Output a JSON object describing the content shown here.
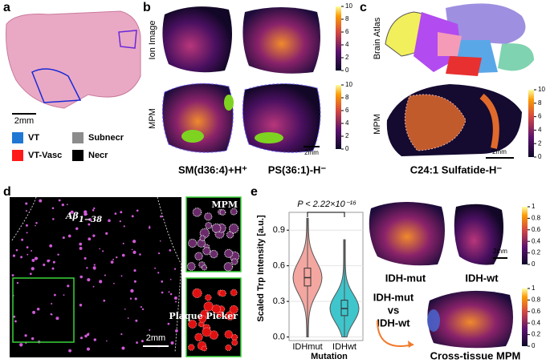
{
  "panels": {
    "a": {
      "label": "a",
      "scale_bar": "2mm",
      "legend": [
        {
          "name": "VT",
          "color": "#1f77d4"
        },
        {
          "name": "Subnecr",
          "color": "#8c8c8c"
        },
        {
          "name": "VT-Vasc",
          "color": "#ff1a1a"
        },
        {
          "name": "Necr",
          "color": "#000000"
        }
      ]
    },
    "b": {
      "label": "b",
      "row_labels": [
        "Ion Image",
        "MPM"
      ],
      "colorbar_ticks": [
        0,
        2,
        4,
        6,
        8,
        10
      ],
      "scale_bar": "2mm",
      "captions": [
        "SM(d36:4)+H⁺",
        "PS(36:1)-H⁻"
      ]
    },
    "c": {
      "label": "c",
      "row_labels": [
        "Brain Atlas",
        "MPM"
      ],
      "colorbar_ticks": [
        0,
        2,
        4,
        6,
        8,
        10
      ],
      "scale_bar": "2mm",
      "caption": "C24:1 Sulfatide-H⁻"
    },
    "d": {
      "label": "d",
      "stain": "Aβ",
      "stain_sub": "1−38",
      "scale_bar": "2mm",
      "insets": [
        "MPM",
        "Plaque Picker"
      ]
    },
    "e": {
      "label": "e",
      "violin": {
        "type": "violin",
        "ylabel": "Scaled Trp Intensity [a.u.]",
        "xlabel": "Mutation",
        "annotation": "P < 2.22×10⁻¹⁶",
        "categories": [
          "IDHmut",
          "IDHwt"
        ],
        "colors": [
          "#f4a6a0",
          "#3fc5cc"
        ],
        "medians": [
          0.5,
          0.24
        ],
        "q1": [
          0.43,
          0.18
        ],
        "q3": [
          0.58,
          0.31
        ],
        "min": [
          0,
          0
        ],
        "max": [
          1,
          0.82
        ],
        "ylim": [
          -0.03,
          1.05
        ],
        "yticks": [
          {
            "value": 0,
            "label": "0.0"
          },
          {
            "value": 0.3,
            "label": "0.3"
          },
          {
            "value": 0.6,
            "label": "0.6"
          },
          {
            "value": 0.9,
            "label": "0.9"
          }
        ],
        "grid": true
      },
      "images": [
        "IDH-mut",
        "IDH-wt"
      ],
      "comparison": [
        "IDH-mut",
        "vs",
        "IDH-wt"
      ],
      "caption": "Cross-tissue MPM",
      "colorbar_ticks": [
        0,
        0.2,
        0.4,
        0.6,
        0.8,
        1
      ],
      "scale_bar": "2mm"
    }
  }
}
